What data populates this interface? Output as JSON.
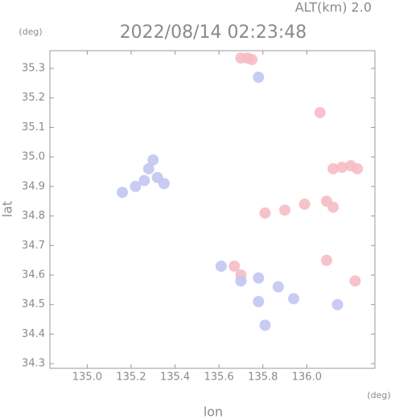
{
  "chart_data": {
    "type": "scatter",
    "title": "2022/08/14 02:23:48",
    "subtitle": "ALT(km) 2.0",
    "ylabel": "lat",
    "y_unit": "(deg)",
    "xlabel": "lon",
    "x_unit": "(deg)",
    "xlim": [
      134.83,
      136.31
    ],
    "ylim": [
      34.284,
      35.36
    ],
    "xticks": [
      {
        "value": 135,
        "label": "135.0"
      },
      135.2,
      135.4,
      135.6,
      135.8,
      {
        "value": 136,
        "label": "136.0"
      }
    ],
    "yticks": [
      34.3,
      34.4,
      34.5,
      34.6,
      34.7,
      34.8,
      34.9,
      {
        "value": 35,
        "label": "35.0"
      },
      35.1,
      35.2,
      35.3
    ],
    "series": [
      {
        "color": "#f6bcc4",
        "x": [
          135.7,
          135.73,
          135.75,
          136.06,
          136.12,
          136.16,
          136.2,
          136.23,
          135.81,
          135.9,
          135.99,
          136.09,
          136.12,
          135.7,
          135.67,
          136.09,
          136.22
        ],
        "values": [
          35.335,
          35.335,
          35.33,
          35.15,
          34.96,
          34.965,
          34.97,
          34.96,
          34.81,
          34.82,
          34.84,
          34.85,
          34.83,
          34.6,
          34.63,
          34.65,
          34.58
        ]
      },
      {
        "color": "#c2c6f2",
        "x": [
          135.28,
          135.32,
          135.35,
          135.26,
          135.3,
          135.22,
          135.16,
          135.78,
          135.61,
          135.7,
          135.78,
          135.87,
          135.94,
          135.78,
          135.81,
          136.14
        ],
        "values": [
          34.96,
          34.93,
          34.91,
          34.92,
          34.99,
          34.9,
          34.88,
          35.27,
          34.63,
          34.58,
          34.59,
          34.56,
          34.52,
          34.51,
          34.43,
          34.5
        ]
      }
    ]
  }
}
